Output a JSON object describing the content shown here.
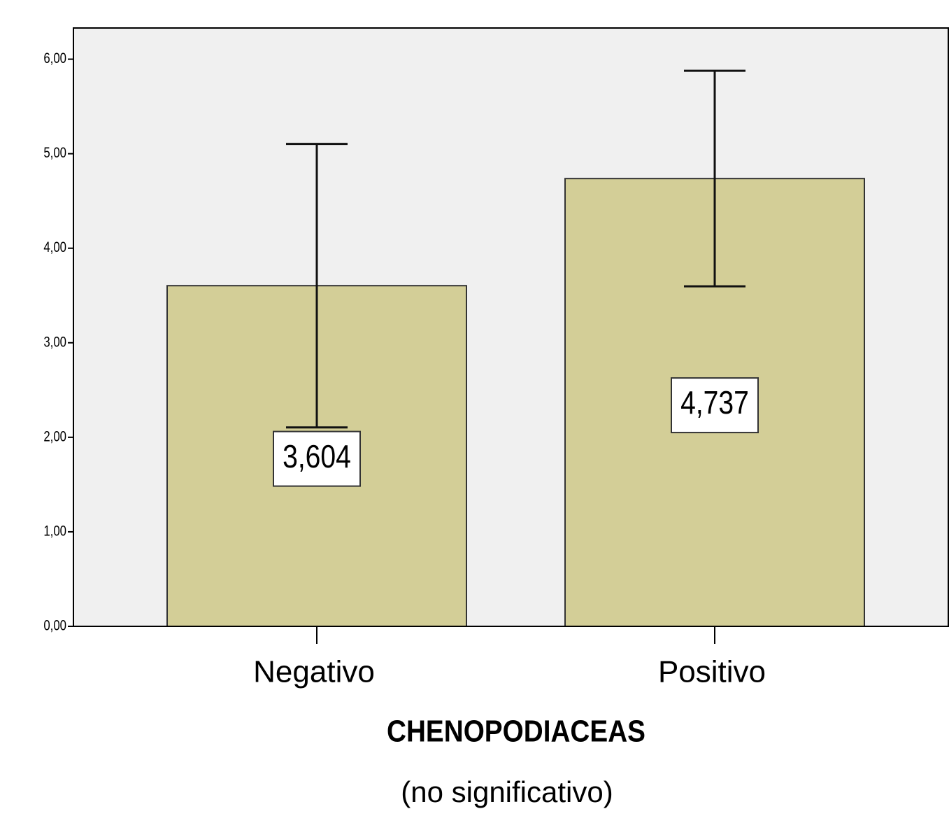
{
  "chart_data": {
    "type": "bar",
    "categories": [
      "Negativo",
      "Positivo"
    ],
    "values": [
      3.604,
      4.737
    ],
    "value_labels": [
      "3,604",
      "4,737"
    ],
    "errors": [
      1.5,
      1.14
    ],
    "color": "#d3ce97",
    "xlabel": "CHENOPODIACEAS",
    "note": "(no significativo)",
    "ylim": [
      0,
      6.33
    ],
    "yticks": [
      {
        "value": 0,
        "label": "0,00"
      },
      {
        "value": 1,
        "label": "1,00"
      },
      {
        "value": 2,
        "label": "2,00"
      },
      {
        "value": 3,
        "label": "3,00"
      },
      {
        "value": 4,
        "label": "4,00"
      },
      {
        "value": 5,
        "label": "5,00"
      },
      {
        "value": 6,
        "label": "6,00"
      }
    ]
  }
}
